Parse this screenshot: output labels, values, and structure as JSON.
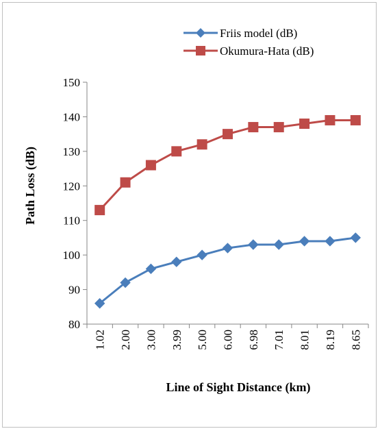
{
  "chart_data": {
    "type": "line",
    "title": "",
    "xlabel": "Line of Sight Distance (km)",
    "ylabel": "Path Loss (dB)",
    "categories": [
      "1.02",
      "2.00",
      "3.00",
      "3.99",
      "5.00",
      "6.00",
      "6.98",
      "7.01",
      "8.01",
      "8.19",
      "8.65"
    ],
    "ylim": [
      80,
      150
    ],
    "yticks": [
      80,
      90,
      100,
      110,
      120,
      130,
      140,
      150
    ],
    "grid": false,
    "legend_position": "top-right",
    "series": [
      {
        "name": "Friis model (dB)",
        "color": "#4a7ebb",
        "marker": "diamond",
        "values": [
          86,
          92,
          96,
          98,
          100,
          102,
          103,
          103,
          104,
          104,
          105
        ]
      },
      {
        "name": "Okumura-Hata (dB)",
        "color": "#be4b48",
        "marker": "square",
        "values": [
          113,
          121,
          126,
          130,
          132,
          135,
          137,
          137,
          138,
          139,
          139
        ]
      }
    ]
  }
}
